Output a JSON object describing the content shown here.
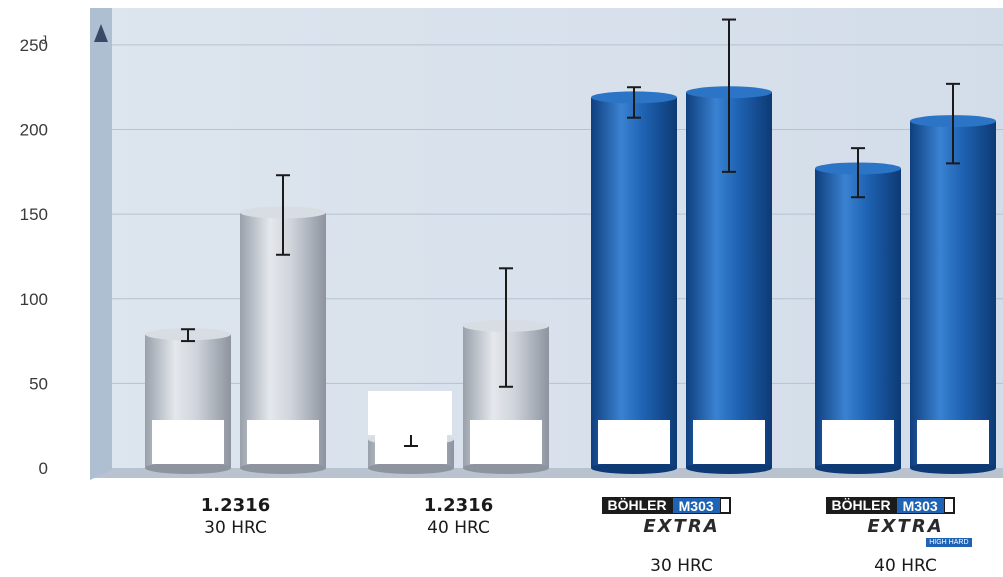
{
  "chart_data": {
    "type": "bar",
    "y_unit": "J",
    "ylim": [
      0,
      260
    ],
    "yticks": [
      0,
      50,
      100,
      150,
      200,
      250
    ],
    "grid": true,
    "colors": {
      "grey": "#c4cad2",
      "blue": "#1f63b4"
    },
    "groups": [
      {
        "name": "1.2316",
        "sub": "30 HRC",
        "brand": null,
        "bars": [
          {
            "value": 79,
            "err": [
              75,
              82
            ],
            "color": "grey"
          },
          {
            "value": 151,
            "err": [
              126,
              173
            ],
            "color": "grey"
          }
        ]
      },
      {
        "name": "1.2316",
        "sub": "40 HRC",
        "brand": null,
        "bars": [
          {
            "value": 17,
            "err": [
              13,
              21
            ],
            "color": "grey"
          },
          {
            "value": 84,
            "err": [
              48,
              118
            ],
            "color": "grey"
          }
        ]
      },
      {
        "name": "",
        "sub": "30 HRC",
        "brand": {
          "name": "BÖHLER",
          "model": "M303",
          "extra": "EXTRA",
          "tag": ""
        },
        "bars": [
          {
            "value": 219,
            "err": [
              207,
              225
            ],
            "color": "blue"
          },
          {
            "value": 222,
            "err": [
              175,
              265
            ],
            "color": "blue"
          }
        ]
      },
      {
        "name": "",
        "sub": "40 HRC",
        "brand": {
          "name": "BÖHLER",
          "model": "M303",
          "extra": "EXTRA",
          "tag": "HIGH HARD"
        },
        "bars": [
          {
            "value": 177,
            "err": [
              160,
              189
            ],
            "color": "blue"
          },
          {
            "value": 205,
            "err": [
              180,
              227
            ],
            "color": "blue"
          }
        ]
      }
    ]
  }
}
